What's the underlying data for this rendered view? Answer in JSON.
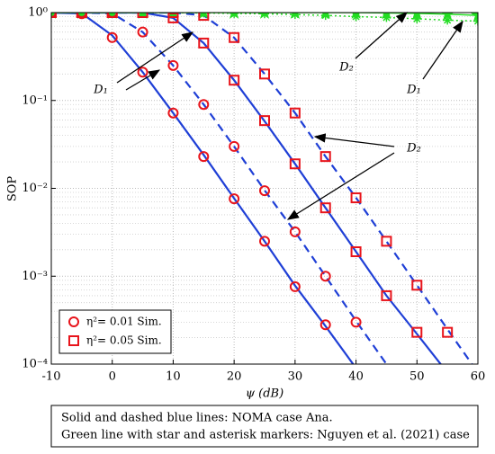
{
  "chart_data": {
    "type": "line",
    "xlabel": "ψ (dB)",
    "ylabel": "SOP",
    "log_y": true,
    "grid": true,
    "minor_grid": true,
    "legend": "lower left",
    "xlim": [
      -10,
      60
    ],
    "xticks": [
      -10,
      0,
      10,
      20,
      30,
      40,
      50,
      60
    ],
    "ylim": [
      0.0001,
      1
    ],
    "yticks": [
      {
        "value": 0.0001,
        "label": "10⁻⁴"
      },
      {
        "value": 0.001,
        "label": "10⁻³"
      },
      {
        "value": 0.01,
        "label": "10⁻²"
      },
      {
        "value": 0.1,
        "label": "10⁻¹"
      },
      {
        "value": 1,
        "label": "10⁰"
      }
    ],
    "series": [
      {
        "color": "#1f3fd6",
        "style": "solid",
        "marker": "none",
        "x": [
          -10,
          -5,
          0,
          5,
          10,
          15,
          20,
          25,
          30,
          35,
          40
        ],
        "values": [
          1,
          0.98,
          0.55,
          0.21,
          0.072,
          0.024,
          0.0077,
          0.0025,
          0.00078,
          0.00027,
          9e-05
        ]
      },
      {
        "color": "#1f3fd6",
        "style": "dashed",
        "marker": "none",
        "x": [
          -10,
          -5,
          0,
          5,
          10,
          15,
          20,
          25,
          30,
          35,
          40,
          45
        ],
        "values": [
          1,
          1,
          0.98,
          0.6,
          0.25,
          0.09,
          0.03,
          0.0095,
          0.0032,
          0.001,
          0.00031,
          0.0001
        ]
      },
      {
        "color": "#1f3fd6",
        "style": "solid",
        "marker": "none",
        "x": [
          -10,
          -5,
          0,
          5,
          10,
          15,
          20,
          25,
          30,
          35,
          40,
          45,
          50,
          55
        ],
        "values": [
          1,
          1,
          1,
          1,
          0.87,
          0.45,
          0.17,
          0.058,
          0.019,
          0.006,
          0.0019,
          0.0006,
          0.00022,
          8e-05
        ]
      },
      {
        "color": "#1f3fd6",
        "style": "dashed",
        "marker": "none",
        "x": [
          -10,
          -5,
          0,
          5,
          10,
          15,
          20,
          25,
          30,
          35,
          40,
          45,
          50,
          55,
          60
        ],
        "values": [
          1,
          1,
          1,
          1,
          1,
          0.93,
          0.52,
          0.2,
          0.072,
          0.023,
          0.0078,
          0.0025,
          0.00079,
          0.00025,
          8e-05
        ]
      },
      {
        "color": "#22dd22",
        "style": "solid",
        "marker": "star",
        "x": [
          -10,
          -5,
          0,
          5,
          10,
          15,
          20,
          25,
          30,
          35,
          40,
          45,
          50,
          55,
          60
        ],
        "values": [
          1,
          1,
          1,
          1,
          1,
          1,
          1,
          1,
          1,
          1,
          1,
          0.99,
          0.98,
          0.96,
          0.93
        ]
      },
      {
        "color": "#22dd22",
        "style": "dotted",
        "marker": "asterisk",
        "x": [
          -10,
          -5,
          0,
          5,
          10,
          15,
          20,
          25,
          30,
          35,
          40,
          45,
          50,
          55,
          60
        ],
        "values": [
          1,
          1,
          1,
          1,
          1,
          0.99,
          0.98,
          0.97,
          0.95,
          0.93,
          0.9,
          0.88,
          0.85,
          0.82,
          0.8
        ]
      },
      {
        "name": "η²= 0.01 Sim.",
        "color": "#e8141b",
        "style": "none",
        "marker": "circle",
        "x": [
          -10,
          -5,
          0,
          5,
          10,
          15,
          20,
          25,
          30,
          35
        ],
        "values": [
          1,
          0.97,
          0.52,
          0.21,
          0.072,
          0.023,
          0.0076,
          0.0025,
          0.00076,
          0.00028
        ]
      },
      {
        "color": "#e8141b",
        "style": "none",
        "marker": "circle",
        "x": [
          -10,
          -5,
          0,
          5,
          10,
          15,
          20,
          25,
          30,
          35,
          40
        ],
        "values": [
          1,
          1,
          1,
          0.6,
          0.25,
          0.09,
          0.03,
          0.0094,
          0.0032,
          0.001,
          0.0003
        ]
      },
      {
        "name": "η²= 0.05 Sim.",
        "color": "#e8141b",
        "style": "none",
        "marker": "square",
        "x": [
          -10,
          -5,
          0,
          5,
          10,
          15,
          20,
          25,
          30,
          35,
          40,
          45,
          50
        ],
        "values": [
          1,
          1,
          1,
          1,
          0.87,
          0.45,
          0.17,
          0.059,
          0.019,
          0.006,
          0.0019,
          0.0006,
          0.00023
        ]
      },
      {
        "color": "#e8141b",
        "style": "none",
        "marker": "square",
        "x": [
          -10,
          -5,
          0,
          5,
          10,
          15,
          20,
          25,
          30,
          35,
          40,
          45,
          50,
          55
        ],
        "values": [
          1,
          1,
          1,
          1,
          1,
          0.93,
          0.52,
          0.2,
          0.072,
          0.023,
          0.0078,
          0.0025,
          0.00079,
          0.00023
        ]
      }
    ],
    "annotations": [
      "D₁",
      "D₂",
      "D₁",
      "D₂"
    ],
    "caption": [
      "Solid and dashed blue lines: NOMA case Ana.",
      "Green line with star and asterisk markers: Nguyen et al. (2021) case"
    ]
  }
}
